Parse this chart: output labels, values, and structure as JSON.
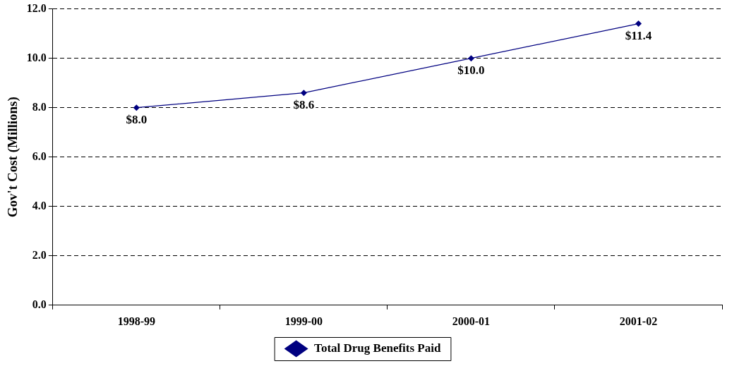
{
  "chart_data": {
    "type": "line",
    "ylabel": "Gov't Cost (Millions)",
    "categories": [
      "1998-99",
      "1999-00",
      "2000-01",
      "2001-02"
    ],
    "series": [
      {
        "name": "Total Drug Benefits Paid",
        "color": "#000080",
        "values": [
          8.0,
          8.6,
          10.0,
          11.4
        ],
        "value_labels": [
          "$8.0",
          "$8.6",
          "$10.0",
          "$11.4"
        ]
      }
    ],
    "ylim": [
      0,
      12
    ],
    "yticks": [
      {
        "value": 0,
        "label": "0.0"
      },
      {
        "value": 2,
        "label": "2.0"
      },
      {
        "value": 4,
        "label": "4.0"
      },
      {
        "value": 6,
        "label": "6.0"
      },
      {
        "value": 8,
        "label": "8.0"
      },
      {
        "value": 10,
        "label": "10.0"
      },
      {
        "value": 12,
        "label": "12.0"
      }
    ],
    "grid": "y",
    "legend": "bottom",
    "marker": "diamond",
    "line_style": "solid"
  }
}
